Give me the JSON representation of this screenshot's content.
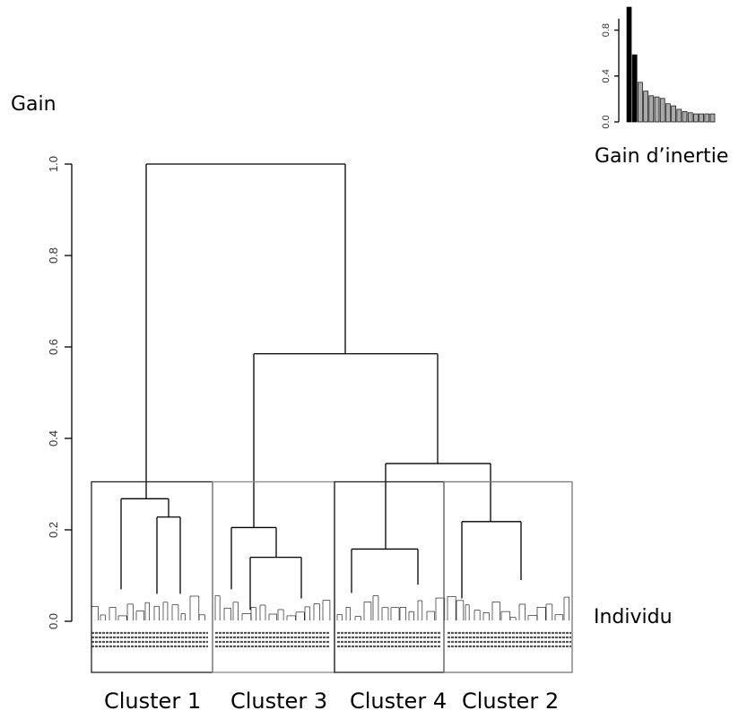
{
  "chart_data": [
    {
      "type": "dendrogram",
      "ylabel": "Gain",
      "xlabel": "Individu",
      "ylim": [
        0,
        1.0
      ],
      "yticks": [
        "0.0",
        "0.2",
        "0.4",
        "0.6",
        "0.8",
        "1.0"
      ],
      "merge_heights": [
        1.0,
        0.585,
        0.345,
        0.268,
        0.228,
        0.218,
        0.205,
        0.158,
        0.14
      ],
      "clusters": [
        {
          "name": "Cluster 1",
          "cut_height": 0.305
        },
        {
          "name": "Cluster 3",
          "cut_height": 0.305
        },
        {
          "name": "Cluster 4",
          "cut_height": 0.305
        },
        {
          "name": "Cluster 2",
          "cut_height": 0.305
        }
      ]
    },
    {
      "type": "bar",
      "xlabel": "Gain d’inertie",
      "ylim": [
        0,
        1.0
      ],
      "yticks": [
        "0.0",
        "0.4",
        "0.8"
      ],
      "values": [
        1.0,
        0.585,
        0.345,
        0.268,
        0.228,
        0.218,
        0.205,
        0.158,
        0.14,
        0.11,
        0.09,
        0.08,
        0.07,
        0.07,
        0.07,
        0.07
      ],
      "highlighted_count": 3,
      "colors": {
        "highlight": "#000000",
        "rest": "#aaaaaa"
      }
    }
  ]
}
